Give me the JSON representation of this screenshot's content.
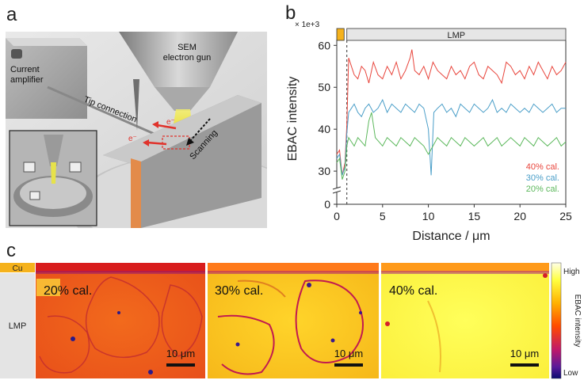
{
  "panels": {
    "a": {
      "letter": "a",
      "labels": {
        "current_amplifier_line1": "Current",
        "current_amplifier_line2": "amplifier",
        "sem_line1": "SEM",
        "sem_line2": "electron gun",
        "tip_connection": "Tip connection",
        "scanning": "Scanning",
        "electron1": "e⁻",
        "electron2": "e⁻"
      }
    },
    "b": {
      "letter": "b"
    },
    "c": {
      "letter": "c",
      "side_labels": {
        "cu": "Cu",
        "lmp": "LMP"
      },
      "maps": [
        {
          "label": "20% cal.",
          "scalebar": "10 μm"
        },
        {
          "label": "30% cal.",
          "scalebar": "10 μm"
        },
        {
          "label": "40% cal.",
          "scalebar": "10 μm"
        }
      ],
      "colorbar": {
        "high": "High",
        "low": "Low",
        "title": "EBAC intensity"
      }
    }
  },
  "chart_data": {
    "type": "line",
    "xlabel": "Distance / μm",
    "ylabel": "EBAC intensity",
    "y_multiplier": "× 1e+3",
    "xlim": [
      0,
      25
    ],
    "xticks": [
      0,
      5,
      10,
      15,
      20,
      25
    ],
    "yticks": [
      0,
      30,
      40,
      50,
      60
    ],
    "axis_break": "between 0 and 30 (lower segment 0, upper segment 27–61)",
    "top_band": {
      "cu_region": [
        0,
        0.8
      ],
      "lmp_label": "LMP",
      "lmp_region": [
        1.1,
        25
      ]
    },
    "interface_x": 1.1,
    "series": [
      {
        "name": "40% cal.",
        "color": "#e8453c",
        "x": [
          0,
          0.3,
          0.6,
          0.9,
          1.1,
          1.3,
          1.6,
          1.9,
          2.3,
          2.7,
          3.1,
          3.5,
          4.0,
          4.5,
          5,
          5.5,
          6,
          6.5,
          7,
          7.5,
          8,
          8.2,
          8.5,
          9,
          9.5,
          10,
          10.5,
          11,
          11.5,
          12,
          12.5,
          13,
          13.5,
          14,
          14.5,
          15,
          15.5,
          16,
          16.5,
          17,
          17.5,
          18,
          18.5,
          19,
          19.5,
          20,
          20.5,
          21,
          21.5,
          22,
          22.5,
          23,
          23.5,
          24,
          24.5,
          25
        ],
        "values": [
          34,
          35,
          29,
          32,
          41,
          57,
          55,
          53,
          52,
          55,
          54,
          51,
          56,
          53,
          52,
          55,
          53,
          56,
          52,
          54,
          57,
          59,
          54,
          53,
          55,
          52,
          56,
          54,
          53,
          52,
          55,
          53,
          54,
          52,
          55,
          56,
          53,
          52,
          55,
          54,
          53,
          51,
          56,
          55,
          53,
          54,
          52,
          55,
          53,
          56,
          54,
          52,
          55,
          53,
          54,
          56
        ]
      },
      {
        "name": "30% cal.",
        "color": "#4a9ec8",
        "x": [
          0,
          0.3,
          0.6,
          0.9,
          1.1,
          1.3,
          1.6,
          1.9,
          2.3,
          2.7,
          3.1,
          3.5,
          4.0,
          4.5,
          5,
          5.5,
          6,
          6.5,
          7,
          7.5,
          8,
          8.5,
          9,
          9.5,
          10,
          10.3,
          10.6,
          11,
          11.5,
          12,
          12.5,
          13,
          13.5,
          14,
          14.5,
          15,
          15.5,
          16,
          16.5,
          17,
          17.5,
          18,
          18.5,
          19,
          19.5,
          20,
          20.5,
          21,
          21.5,
          22,
          22.5,
          23,
          23.5,
          24,
          24.5,
          25
        ],
        "values": [
          33,
          34,
          29,
          31,
          39,
          44,
          45,
          46,
          44,
          43,
          45,
          46,
          44,
          45,
          47,
          44,
          46,
          45,
          44,
          46,
          45,
          44,
          46,
          45,
          40,
          29,
          44,
          45,
          46,
          44,
          45,
          43,
          46,
          45,
          44,
          46,
          45,
          44,
          45,
          47,
          44,
          45,
          44,
          46,
          45,
          44,
          45,
          44,
          46,
          45,
          44,
          45,
          46,
          44,
          45,
          45
        ]
      },
      {
        "name": "20% cal.",
        "color": "#5cb85c",
        "x": [
          0,
          0.3,
          0.6,
          0.9,
          1.1,
          1.3,
          1.6,
          1.9,
          2.3,
          2.7,
          3.1,
          3.5,
          3.8,
          4.2,
          4.6,
          5,
          5.5,
          6,
          6.5,
          7,
          7.5,
          8,
          8.5,
          9,
          9.5,
          10,
          10.5,
          11,
          11.5,
          12,
          12.5,
          13,
          13.5,
          14,
          14.5,
          15,
          15.5,
          16,
          16.5,
          17,
          17.5,
          18,
          18.5,
          19,
          19.5,
          20,
          20.5,
          21,
          21.5,
          22,
          22.5,
          23,
          23.5,
          24,
          24.5,
          25
        ],
        "values": [
          32,
          33,
          28,
          30,
          36,
          38,
          37,
          36,
          38,
          37,
          36,
          42,
          44,
          38,
          37,
          36,
          38,
          37,
          36,
          38,
          37,
          36,
          38,
          37,
          36,
          34,
          36,
          38,
          37,
          36,
          38,
          37,
          36,
          38,
          37,
          36,
          37,
          38,
          36,
          37,
          38,
          36,
          37,
          38,
          37,
          36,
          38,
          37,
          36,
          38,
          37,
          36,
          37,
          38,
          36,
          37
        ]
      }
    ],
    "legend": {
      "placement": "bottom-right",
      "entries": [
        "40% cal.",
        "30% cal.",
        "20% cal."
      ]
    }
  }
}
